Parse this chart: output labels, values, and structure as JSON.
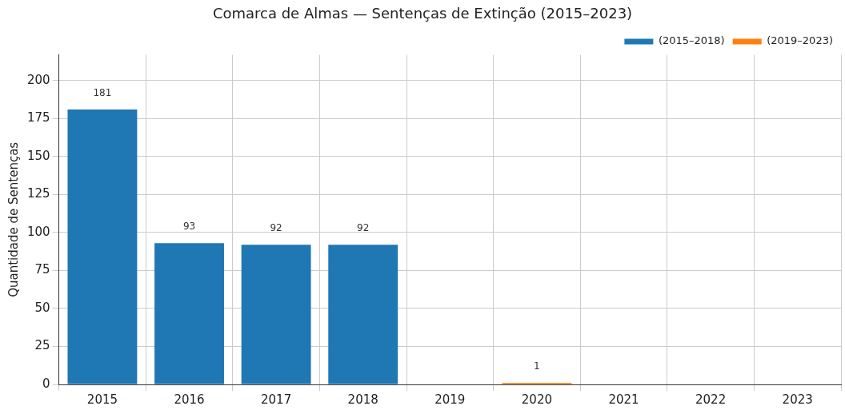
{
  "chart_data": {
    "type": "bar",
    "title": "Comarca de Almas — Sentenças de Extinção (2015–2023)",
    "ylabel": "Quantidade de Sentenças",
    "categories": [
      "2015",
      "2016",
      "2017",
      "2018",
      "2019",
      "2020",
      "2021",
      "2022",
      "2023"
    ],
    "series": [
      {
        "name": "(2015–2018)",
        "color": "#1f77b4",
        "values": [
          181,
          93,
          92,
          92,
          null,
          null,
          null,
          null,
          null
        ]
      },
      {
        "name": "(2019–2023)",
        "color": "#ff7f0e",
        "values": [
          null,
          null,
          null,
          null,
          null,
          1,
          null,
          null,
          null
        ]
      }
    ],
    "ylim": [
      0,
      217
    ],
    "yticks": [
      0,
      25,
      50,
      75,
      100,
      125,
      150,
      175,
      200
    ],
    "grid": true,
    "legend": "top right",
    "data_labels": true
  }
}
